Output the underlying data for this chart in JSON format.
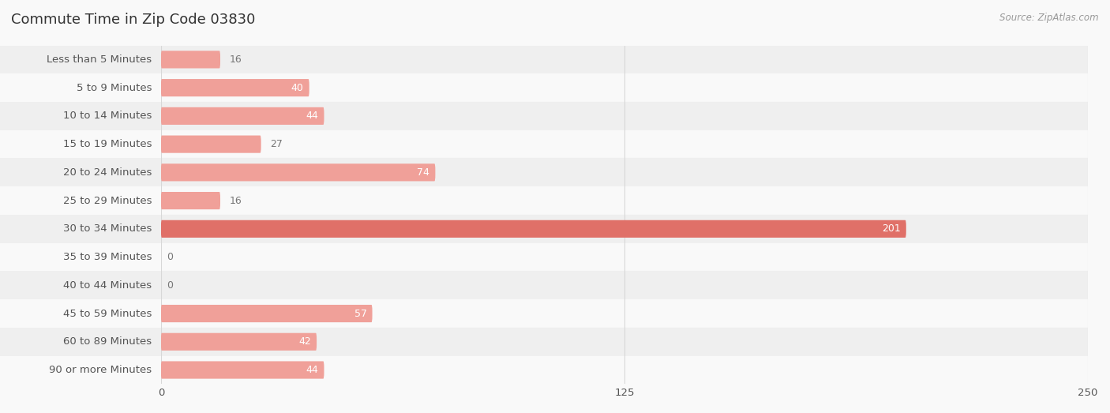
{
  "title": "Commute Time in Zip Code 03830",
  "source": "Source: ZipAtlas.com",
  "categories": [
    "Less than 5 Minutes",
    "5 to 9 Minutes",
    "10 to 14 Minutes",
    "15 to 19 Minutes",
    "20 to 24 Minutes",
    "25 to 29 Minutes",
    "30 to 34 Minutes",
    "35 to 39 Minutes",
    "40 to 44 Minutes",
    "45 to 59 Minutes",
    "60 to 89 Minutes",
    "90 or more Minutes"
  ],
  "values": [
    16,
    40,
    44,
    27,
    74,
    16,
    201,
    0,
    0,
    57,
    42,
    44
  ],
  "xlim": [
    0,
    250
  ],
  "xticks": [
    0,
    125,
    250
  ],
  "bar_color_normal": "#f0a099",
  "bar_color_highlight": "#e07068",
  "highlight_index": 6,
  "bg_color": "#f9f9f9",
  "row_bg_even": "#efefef",
  "row_bg_odd": "#f9f9f9",
  "title_color": "#333333",
  "label_color": "#555555",
  "value_color_inside": "#ffffff",
  "value_color_outside": "#777777",
  "grid_color": "#d8d8d8",
  "source_color": "#999999",
  "bar_height": 0.62,
  "title_fontsize": 13,
  "label_fontsize": 9.5,
  "value_fontsize": 9,
  "tick_fontsize": 9.5,
  "source_fontsize": 8.5
}
